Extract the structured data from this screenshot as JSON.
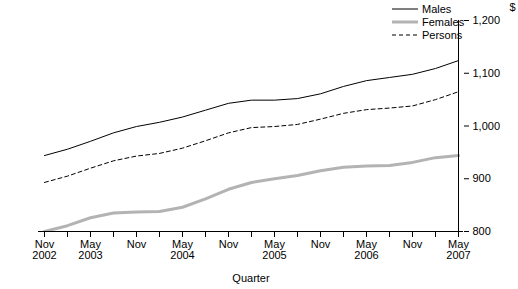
{
  "chart_data": {
    "type": "line",
    "x_label": "Quarter",
    "y_label": "$",
    "categories": [
      "Nov\n2002",
      null,
      "May\n2003",
      null,
      "Nov",
      null,
      "May\n2004",
      null,
      "Nov",
      null,
      "May\n2005",
      null,
      "Nov",
      null,
      "May\n2006",
      null,
      "Nov",
      null,
      "May\n2007"
    ],
    "series": [
      {
        "name": "Males",
        "color": "#000000",
        "line_style": "solid",
        "values": [
          944,
          956,
          971,
          987,
          999,
          1007,
          1017,
          1030,
          1043,
          1049,
          1049,
          1052,
          1061,
          1075,
          1086,
          1092,
          1098,
          1109,
          1124
        ]
      },
      {
        "name": "Females",
        "color": "#b3b3b3",
        "line_style": "thick",
        "values": [
          800,
          811,
          826,
          835,
          837,
          838,
          846,
          862,
          880,
          893,
          900,
          906,
          915,
          922,
          924,
          925,
          931,
          940,
          944
        ]
      },
      {
        "name": "Persons",
        "color": "#000000",
        "line_style": "dashed",
        "values": [
          893,
          905,
          920,
          934,
          943,
          948,
          958,
          972,
          987,
          997,
          999,
          1003,
          1013,
          1024,
          1031,
          1034,
          1038,
          1050,
          1065
        ]
      }
    ],
    "ylim": [
      800,
      1200
    ],
    "yticks": [
      800,
      900,
      1000,
      1100,
      1200
    ],
    "grid": false,
    "legend": "top-right"
  }
}
